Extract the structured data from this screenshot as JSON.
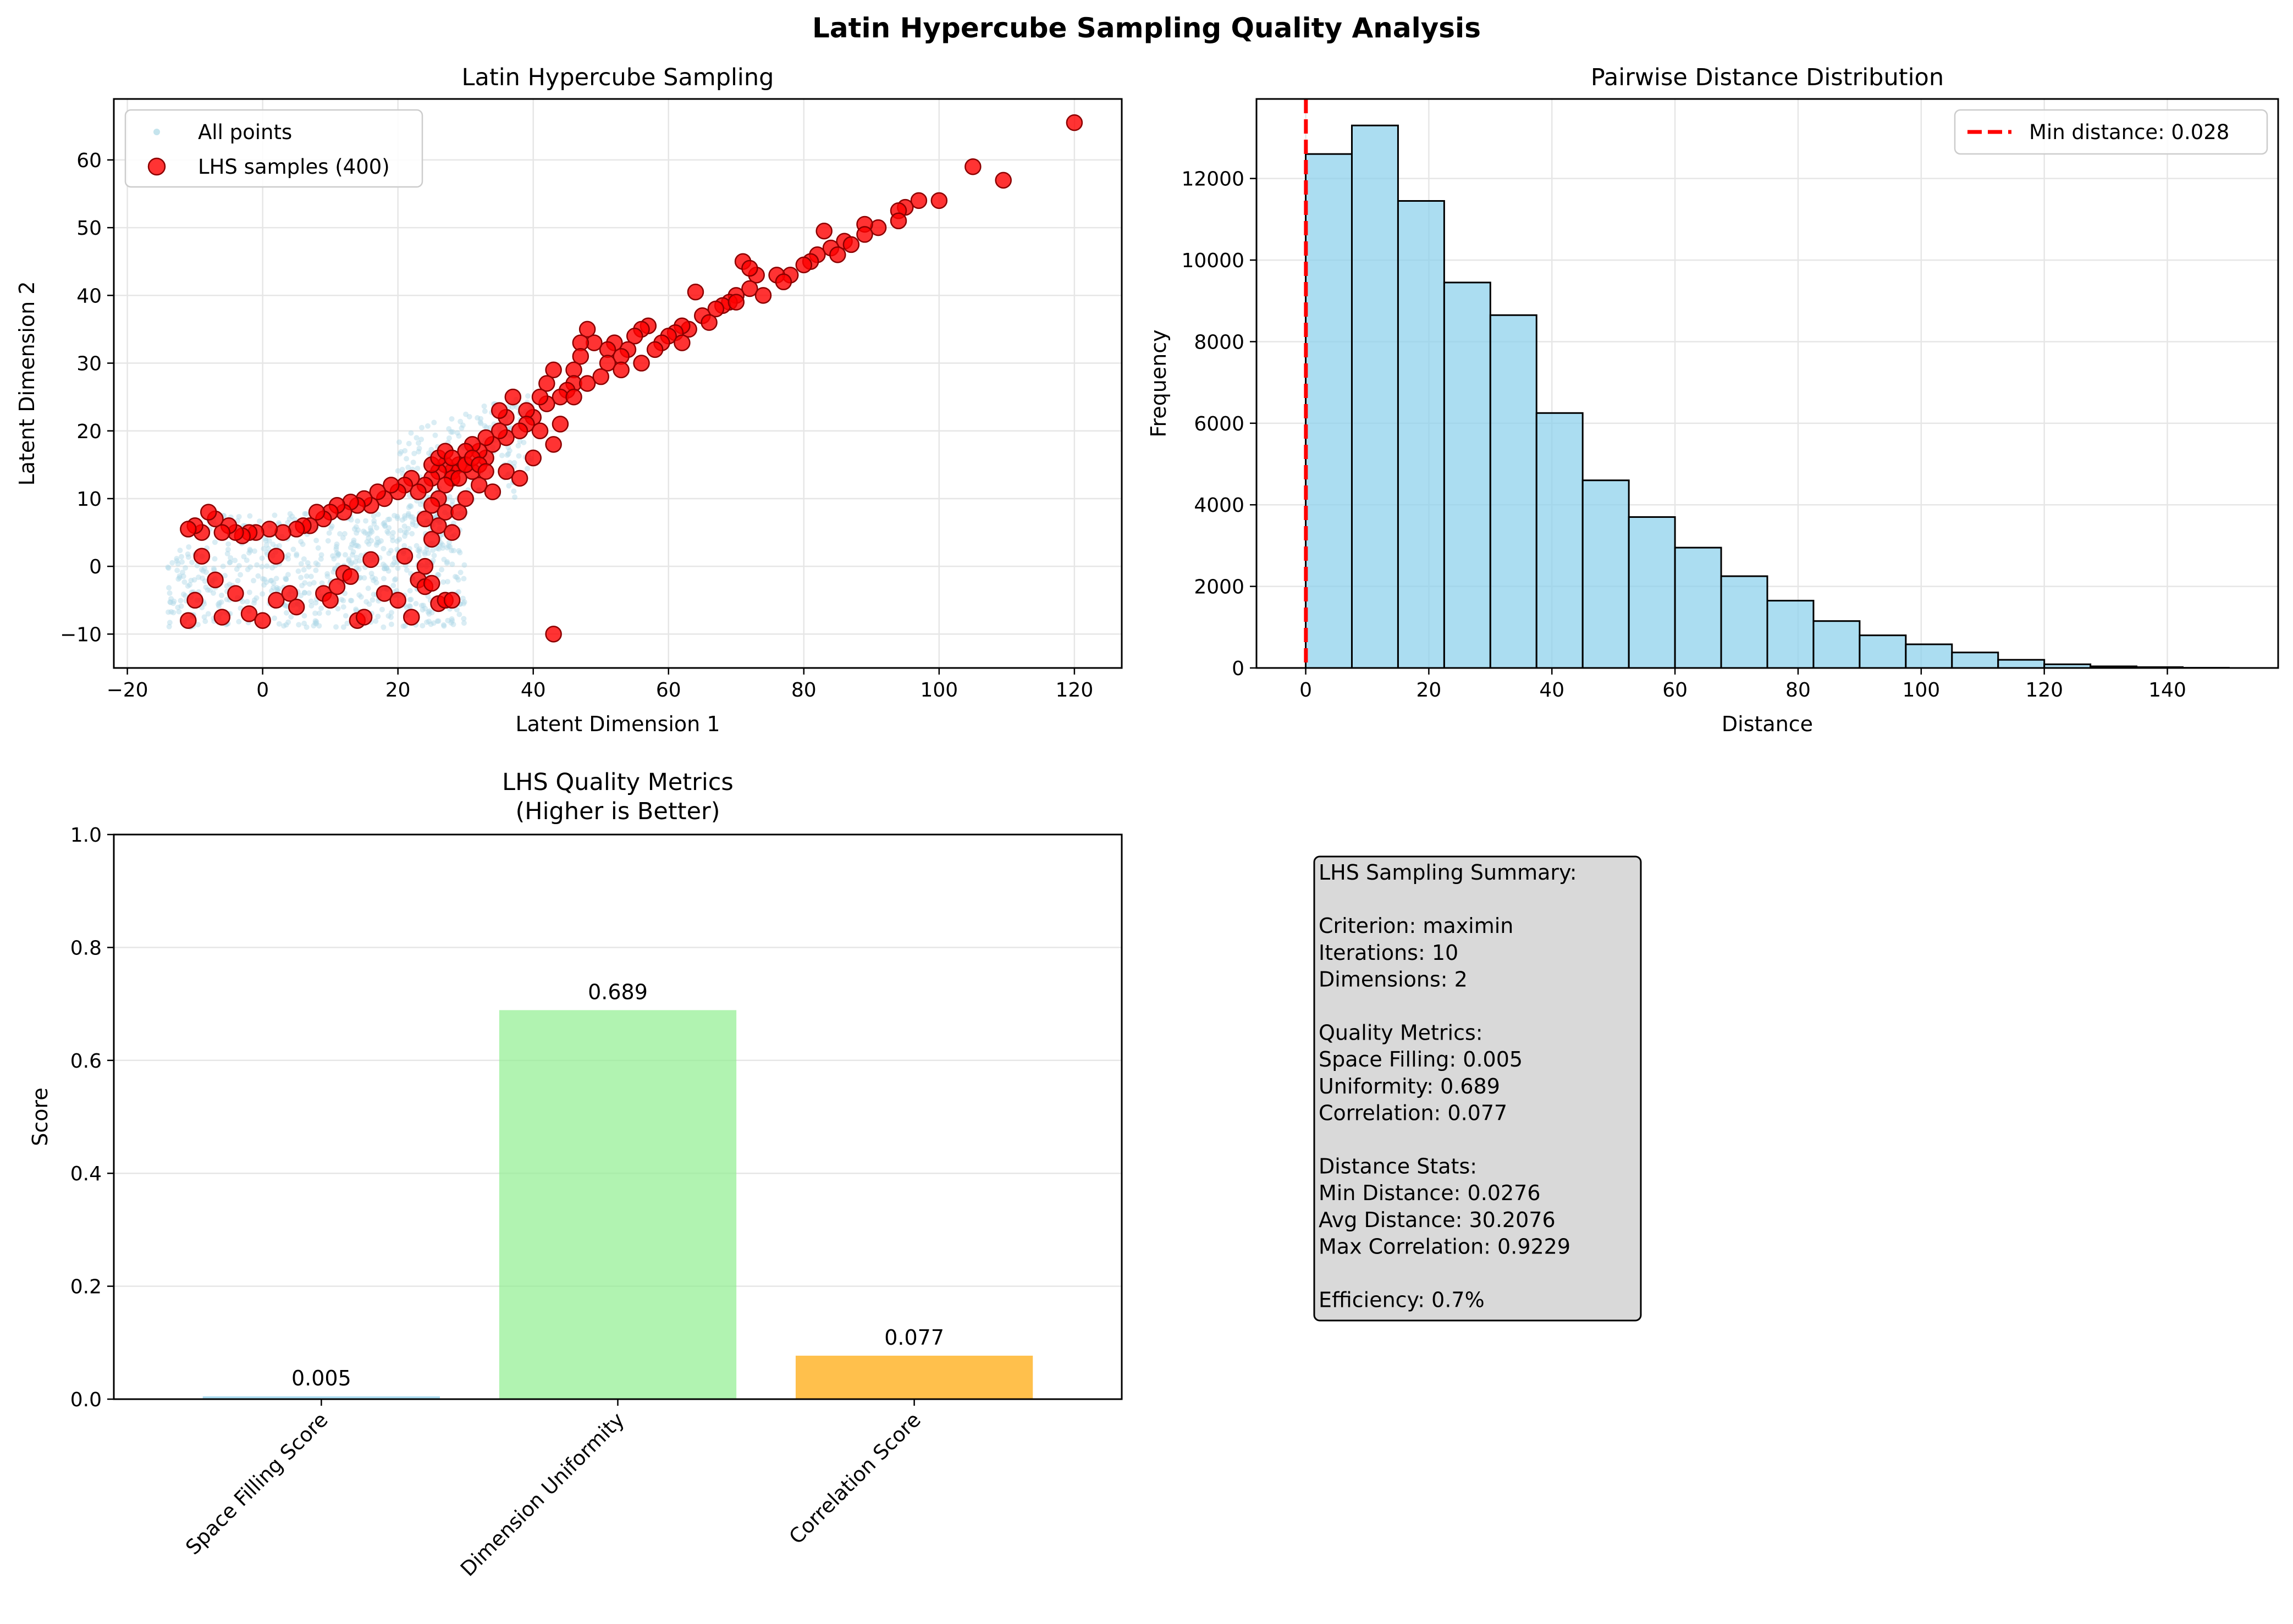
{
  "figure": {
    "title": "Latin Hypercube Sampling Quality Analysis"
  },
  "chart_data": [
    {
      "type": "scatter",
      "title": "Latin Hypercube Sampling",
      "xlabel": "Latent Dimension 1",
      "ylabel": "Latent Dimension 2",
      "xlim": [
        -22,
        127
      ],
      "ylim": [
        -15,
        69
      ],
      "xticks": [
        -20,
        0,
        20,
        40,
        60,
        80,
        100,
        120
      ],
      "yticks": [
        -10,
        0,
        10,
        20,
        30,
        40,
        50,
        60
      ],
      "grid": true,
      "legend": "top-left",
      "series": [
        {
          "name": "All points",
          "color": "#add8e6",
          "note": "dense cloud of small faint points roughly spanning x -16..30, y -10..10"
        },
        {
          "name": "LHS samples (400)",
          "color": "#ff0000",
          "edge": "#8b0000",
          "points": [
            [
              120,
              65.5
            ],
            [
              105,
              59
            ],
            [
              109.5,
              57
            ],
            [
              100,
              54
            ],
            [
              97,
              54
            ],
            [
              95,
              53
            ],
            [
              94,
              52.5
            ],
            [
              94,
              51
            ],
            [
              91,
              50
            ],
            [
              89,
              50.5
            ],
            [
              89,
              49
            ],
            [
              86,
              48
            ],
            [
              83,
              49.5
            ],
            [
              84,
              47
            ],
            [
              82,
              46
            ],
            [
              81,
              45
            ],
            [
              80,
              44.5
            ],
            [
              78,
              43
            ],
            [
              76,
              43
            ],
            [
              73,
              43
            ],
            [
              72,
              41
            ],
            [
              71,
              45
            ],
            [
              72,
              44
            ],
            [
              70,
              40
            ],
            [
              69,
              39
            ],
            [
              68,
              38.5
            ],
            [
              67,
              38
            ],
            [
              65,
              37
            ],
            [
              64,
              40.5
            ],
            [
              63,
              35
            ],
            [
              62,
              35.5
            ],
            [
              61,
              34.5
            ],
            [
              60,
              34
            ],
            [
              59,
              33
            ],
            [
              57,
              35.5
            ],
            [
              56,
              35
            ],
            [
              55,
              34
            ],
            [
              54,
              32
            ],
            [
              53,
              31
            ],
            [
              52,
              33
            ],
            [
              51,
              32
            ],
            [
              51,
              30
            ],
            [
              49,
              33
            ],
            [
              48,
              35
            ],
            [
              47,
              33
            ],
            [
              47,
              31
            ],
            [
              46,
              29
            ],
            [
              46,
              27
            ],
            [
              45,
              26
            ],
            [
              44,
              25
            ],
            [
              43,
              29
            ],
            [
              42,
              27
            ],
            [
              42,
              24
            ],
            [
              41,
              25
            ],
            [
              40,
              22
            ],
            [
              39,
              23
            ],
            [
              39,
              21
            ],
            [
              38,
              20
            ],
            [
              37,
              25
            ],
            [
              36,
              22
            ],
            [
              36,
              19
            ],
            [
              35,
              23
            ],
            [
              35,
              20
            ],
            [
              34,
              18
            ],
            [
              33,
              19
            ],
            [
              33,
              16
            ],
            [
              32,
              17
            ],
            [
              31,
              18
            ],
            [
              30,
              17
            ],
            [
              29,
              15
            ],
            [
              28,
              14
            ],
            [
              28,
              13
            ],
            [
              27,
              15
            ],
            [
              26,
              14
            ],
            [
              25,
              13
            ],
            [
              24,
              12
            ],
            [
              23,
              11
            ],
            [
              22,
              13
            ],
            [
              21,
              12
            ],
            [
              20,
              11
            ],
            [
              19,
              12
            ],
            [
              18,
              10
            ],
            [
              17,
              11
            ],
            [
              16,
              9
            ],
            [
              15,
              10
            ],
            [
              14,
              9
            ],
            [
              13,
              9.5
            ],
            [
              12,
              8
            ],
            [
              11,
              9
            ],
            [
              10,
              8
            ],
            [
              9,
              7
            ],
            [
              8,
              8
            ],
            [
              7,
              6
            ],
            [
              6,
              6
            ],
            [
              5,
              5.5
            ],
            [
              3,
              5
            ],
            [
              1,
              5.5
            ],
            [
              -1,
              5
            ],
            [
              -2,
              5
            ],
            [
              -3,
              4.5
            ],
            [
              -4,
              5
            ],
            [
              -5,
              6
            ],
            [
              -6,
              5
            ],
            [
              -7,
              7
            ],
            [
              -8,
              8
            ],
            [
              -9,
              5
            ],
            [
              -10,
              6
            ],
            [
              -11,
              5.5
            ],
            [
              -9,
              1.5
            ],
            [
              -7,
              -2
            ],
            [
              -4,
              -4
            ],
            [
              -6,
              -7.5
            ],
            [
              -10,
              -5
            ],
            [
              -11,
              -8
            ],
            [
              -2,
              -7
            ],
            [
              0,
              -8
            ],
            [
              2,
              -5
            ],
            [
              2,
              1.5
            ],
            [
              4,
              -4
            ],
            [
              5,
              -6
            ],
            [
              9,
              -4
            ],
            [
              10,
              -5
            ],
            [
              11,
              -3
            ],
            [
              12,
              -1
            ],
            [
              13,
              -1.5
            ],
            [
              14,
              -8
            ],
            [
              15,
              -7.5
            ],
            [
              16,
              1
            ],
            [
              18,
              -4
            ],
            [
              20,
              -5
            ],
            [
              21,
              1.5
            ],
            [
              22,
              -7.5
            ],
            [
              23,
              -2
            ],
            [
              24,
              -3
            ],
            [
              24,
              0
            ],
            [
              26,
              -5.5
            ],
            [
              27,
              -5
            ],
            [
              28,
              -5
            ],
            [
              25,
              -2.5
            ],
            [
              25,
              4
            ],
            [
              26,
              6
            ],
            [
              27,
              8
            ],
            [
              28,
              5
            ],
            [
              29,
              8
            ],
            [
              30,
              10
            ],
            [
              32,
              12
            ],
            [
              34,
              11
            ],
            [
              36,
              14
            ],
            [
              38,
              13
            ],
            [
              40,
              16
            ],
            [
              43,
              18
            ],
            [
              41,
              20
            ],
            [
              44,
              21
            ],
            [
              31,
              14
            ],
            [
              29,
              13
            ],
            [
              27,
              12
            ],
            [
              26,
              10
            ],
            [
              25,
              9
            ],
            [
              24,
              7
            ],
            [
              25,
              15
            ],
            [
              26,
              16
            ],
            [
              27,
              17
            ],
            [
              28,
              16
            ],
            [
              30,
              15
            ],
            [
              31,
              16
            ],
            [
              32,
              15
            ],
            [
              33,
              14
            ],
            [
              43,
              -10
            ],
            [
              46,
              25
            ],
            [
              48,
              27
            ],
            [
              50,
              28
            ],
            [
              53,
              29
            ],
            [
              56,
              30
            ],
            [
              58,
              32
            ],
            [
              62,
              33
            ],
            [
              66,
              36
            ],
            [
              70,
              39
            ],
            [
              74,
              40
            ],
            [
              77,
              42
            ],
            [
              85,
              46
            ],
            [
              87,
              47.5
            ]
          ]
        }
      ]
    },
    {
      "type": "bar",
      "subtype": "histogram",
      "title": "Pairwise Distance Distribution",
      "xlabel": "Distance",
      "ylabel": "Frequency",
      "xlim": [
        -8,
        158
      ],
      "ylim": [
        0,
        13950
      ],
      "xticks": [
        0,
        20,
        40,
        60,
        80,
        100,
        120,
        140
      ],
      "yticks": [
        0,
        2000,
        4000,
        6000,
        8000,
        10000,
        12000
      ],
      "bin_width": 7.5,
      "bin_start": 0,
      "values": [
        12600,
        13300,
        11450,
        9450,
        8650,
        6250,
        4600,
        3700,
        2950,
        2250,
        1650,
        1150,
        800,
        580,
        380,
        200,
        90,
        40,
        20,
        5
      ],
      "bar_color": "#87ceeb",
      "reference_line": {
        "x": 0.028,
        "label": "Min distance: 0.028",
        "color": "#ff0000"
      },
      "grid": true,
      "legend": "top-right"
    },
    {
      "type": "bar",
      "title_line1": "LHS Quality Metrics",
      "title_line2": "(Higher is Better)",
      "ylabel": "Score",
      "ylim": [
        0,
        1.0
      ],
      "yticks": [
        0.0,
        0.2,
        0.4,
        0.6,
        0.8,
        1.0
      ],
      "categories": [
        "Space Filling Score",
        "Dimension Uniformity",
        "Correlation Score"
      ],
      "values": [
        0.005,
        0.689,
        0.077
      ],
      "value_labels": [
        "0.005",
        "0.689",
        "0.077"
      ],
      "colors": [
        "#87ceeb",
        "#90ee90",
        "#ffa500"
      ],
      "grid": true
    }
  ],
  "summary": {
    "lines": [
      "LHS Sampling Summary:",
      "",
      "Criterion: maximin",
      "Iterations: 10",
      "Dimensions: 2",
      "",
      "Quality Metrics:",
      "Space Filling: 0.005",
      "Uniformity: 0.689",
      "Correlation: 0.077",
      "",
      "Distance Stats:",
      "Min Distance: 0.0276",
      "Avg Distance: 30.2076",
      "Max Correlation: 0.9229",
      "",
      "Efficiency: 0.7%"
    ]
  }
}
